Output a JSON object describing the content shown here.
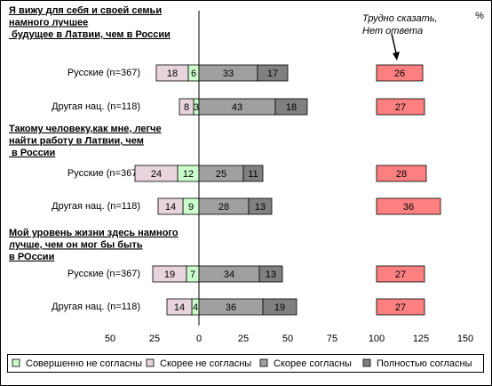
{
  "chart_data": {
    "type": "diverging-bar",
    "unit": "%",
    "group_titles": [
      [
        "Я вижу для себя и своей семьи",
        "намного лучшее",
        " будущее в Латвии, чем в России"
      ],
      [
        "Такому человеку,как мне, легче",
        "найти работу в Латвии, чем",
        " в России"
      ],
      [
        "Мой уровень жизни здесь намного",
        "лучше, чем он мог бы быть",
        "в РОссии"
      ]
    ],
    "categories": [
      "Русские (n=367)",
      "Другая нац. (n=118)",
      "Русские (n=367)",
      "Другая нац. (n=118)",
      "Русские (n=367)",
      "Другая нац. (n=118)"
    ],
    "series": [
      {
        "name": "Совершенно не согласны",
        "color": "#ccffcc",
        "side": "left",
        "label_color": "#ff0000",
        "values": [
          6,
          3,
          12,
          9,
          7,
          4
        ]
      },
      {
        "name": "Скорее не согласны",
        "color": "#e8d4dc",
        "side": "left",
        "label_color": "#ff0000",
        "values": [
          18,
          8,
          24,
          14,
          19,
          14
        ]
      },
      {
        "name": "Скорее согласны",
        "color": "#a0a0a0",
        "side": "right",
        "label_color": "#000000",
        "values": [
          33,
          43,
          25,
          28,
          34,
          36
        ]
      },
      {
        "name": "Полностью согласны",
        "color": "#808080",
        "side": "right",
        "label_color": "#000000",
        "values": [
          17,
          18,
          11,
          13,
          13,
          19
        ]
      },
      {
        "name": "Трудно сказать, Нет ответа",
        "color": "#ff8080",
        "side": "separate",
        "start": 100,
        "label_color": "#000000",
        "values": [
          26,
          27,
          28,
          36,
          27,
          27
        ]
      }
    ],
    "xlim": [
      -50,
      150
    ],
    "xticks": [
      {
        "value": -50,
        "label": "50"
      },
      {
        "value": -25,
        "label": "25"
      },
      0,
      25,
      50,
      75,
      100,
      125,
      150
    ],
    "negative_tick_color": "#ff0000"
  }
}
